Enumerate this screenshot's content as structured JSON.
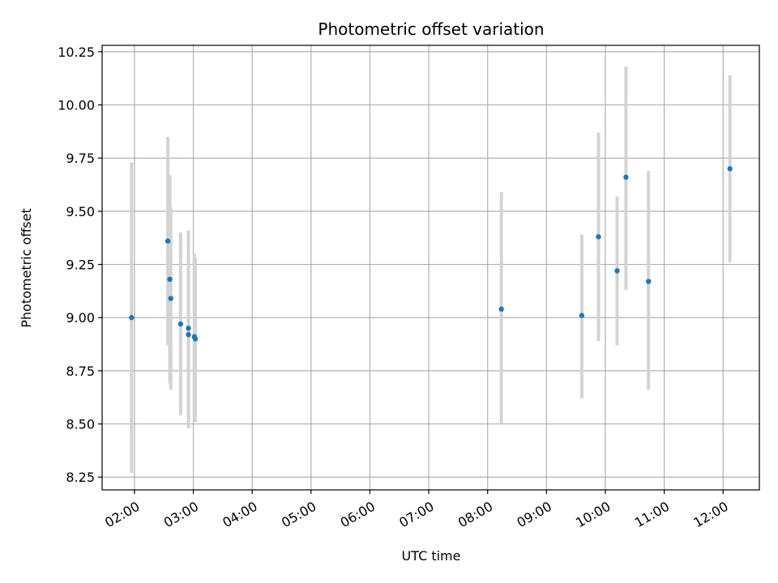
{
  "chart_data": {
    "type": "scatter",
    "title": "Photometric offset variation",
    "xlabel": "UTC time",
    "ylabel": "Photometric offset",
    "x_unit": "hours UTC",
    "xlim": [
      "01:27",
      "12:37"
    ],
    "ylim": [
      8.19,
      10.28
    ],
    "x_ticks": [
      "02:00",
      "03:00",
      "04:00",
      "05:00",
      "06:00",
      "07:00",
      "08:00",
      "09:00",
      "10:00",
      "11:00",
      "12:00"
    ],
    "y_ticks": [
      "8.25",
      "8.50",
      "8.75",
      "9.00",
      "9.25",
      "9.50",
      "9.75",
      "10.00",
      "10.25"
    ],
    "grid": true,
    "point_color": "#1f77b4",
    "errorbar_color": "#d3d3d3",
    "points": [
      {
        "x": "01:57",
        "y": 9.0,
        "err_low": 8.27,
        "err_high": 9.73
      },
      {
        "x": "02:34",
        "y": 9.36,
        "err_low": 8.87,
        "err_high": 9.85
      },
      {
        "x": "02:36",
        "y": 9.18,
        "err_low": 8.69,
        "err_high": 9.67
      },
      {
        "x": "02:37",
        "y": 9.09,
        "err_low": 8.66,
        "err_high": 9.52
      },
      {
        "x": "02:47",
        "y": 8.97,
        "err_low": 8.54,
        "err_high": 9.4
      },
      {
        "x": "02:55",
        "y": 8.95,
        "err_low": 8.48,
        "err_high": 9.41
      },
      {
        "x": "02:55",
        "y": 8.92,
        "err_low": 8.53,
        "err_high": 9.31
      },
      {
        "x": "03:01",
        "y": 8.91,
        "err_low": 8.52,
        "err_high": 9.3
      },
      {
        "x": "03:02",
        "y": 8.9,
        "err_low": 8.51,
        "err_high": 9.28
      },
      {
        "x": "08:14",
        "y": 9.04,
        "err_low": 8.5,
        "err_high": 9.59
      },
      {
        "x": "09:36",
        "y": 9.01,
        "err_low": 8.62,
        "err_high": 9.39
      },
      {
        "x": "09:53",
        "y": 9.38,
        "err_low": 8.89,
        "err_high": 9.87
      },
      {
        "x": "10:12",
        "y": 9.22,
        "err_low": 8.87,
        "err_high": 9.57
      },
      {
        "x": "10:21",
        "y": 9.66,
        "err_low": 9.13,
        "err_high": 10.18
      },
      {
        "x": "10:44",
        "y": 9.17,
        "err_low": 8.66,
        "err_high": 9.69
      },
      {
        "x": "12:07",
        "y": 9.7,
        "err_low": 9.26,
        "err_high": 10.14
      }
    ]
  }
}
